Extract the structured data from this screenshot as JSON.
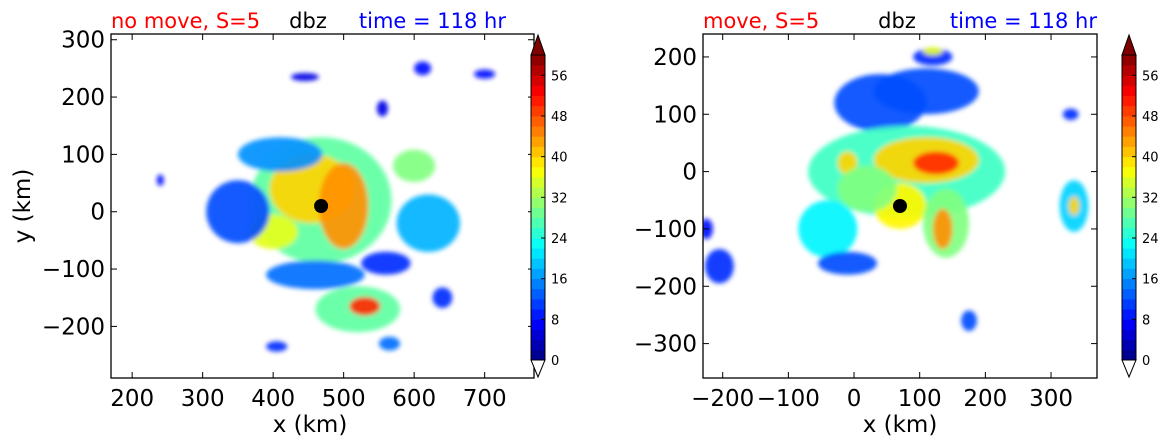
{
  "figure": {
    "panels": [
      {
        "title_left": "no move, S=5",
        "title_center": "dbz",
        "title_right": "time = 118 hr",
        "xlabel": "x (km)",
        "ylabel": "y (km)",
        "xticks": [
          "200",
          "300",
          "400",
          "500",
          "600",
          "700"
        ],
        "yticks": [
          "300",
          "200",
          "100",
          "0",
          "−100",
          "−200"
        ]
      },
      {
        "title_left": "move, S=5",
        "title_center": "dbz",
        "title_right": "time = 118 hr",
        "xlabel": "x (km)",
        "ylabel": "",
        "xticks": [
          "−200",
          "−100",
          "0",
          "100",
          "200",
          "300"
        ],
        "yticks": [
          "200",
          "100",
          "0",
          "−100",
          "−200",
          "−300"
        ]
      }
    ],
    "colorbar_ticks": [
      "0",
      "8",
      "16",
      "24",
      "32",
      "40",
      "48",
      "56"
    ],
    "title_colors": {
      "left": "#ff0000",
      "center": "#000000",
      "right": "#0000ff"
    }
  },
  "chart_data": [
    {
      "type": "heatmap",
      "title": "no move, S=5   dbz   time = 118 hr",
      "xlabel": "x (km)",
      "ylabel": "y (km)",
      "xlim": [
        170,
        770
      ],
      "ylim": [
        -290,
        310
      ],
      "color_range": [
        0,
        60
      ],
      "colormap": "jet",
      "center_marker": {
        "x": 468,
        "y": 10
      },
      "features": [
        {
          "x": 468,
          "y": 20,
          "rx": 100,
          "ry": 110,
          "dbz": 28
        },
        {
          "x": 455,
          "y": 40,
          "rx": 60,
          "ry": 60,
          "dbz": 40
        },
        {
          "x": 500,
          "y": 10,
          "rx": 35,
          "ry": 75,
          "dbz": 44
        },
        {
          "x": 600,
          "y": 80,
          "rx": 30,
          "ry": 28,
          "dbz": 30
        },
        {
          "x": 400,
          "y": -35,
          "rx": 35,
          "ry": 30,
          "dbz": 36
        },
        {
          "x": 350,
          "y": 0,
          "rx": 45,
          "ry": 55,
          "dbz": 12
        },
        {
          "x": 410,
          "y": 100,
          "rx": 60,
          "ry": 30,
          "dbz": 16
        },
        {
          "x": 620,
          "y": -20,
          "rx": 45,
          "ry": 50,
          "dbz": 18
        },
        {
          "x": 520,
          "y": -170,
          "rx": 60,
          "ry": 40,
          "dbz": 28
        },
        {
          "x": 530,
          "y": -165,
          "rx": 22,
          "ry": 16,
          "dbz": 50
        },
        {
          "x": 560,
          "y": -90,
          "rx": 35,
          "ry": 20,
          "dbz": 10
        },
        {
          "x": 565,
          "y": -230,
          "rx": 15,
          "ry": 12,
          "dbz": 14
        },
        {
          "x": 405,
          "y": -235,
          "rx": 15,
          "ry": 9,
          "dbz": 10
        },
        {
          "x": 460,
          "y": -110,
          "rx": 70,
          "ry": 25,
          "dbz": 14
        },
        {
          "x": 612,
          "y": 250,
          "rx": 12,
          "ry": 12,
          "dbz": 8
        },
        {
          "x": 700,
          "y": 240,
          "rx": 15,
          "ry": 8,
          "dbz": 8
        },
        {
          "x": 445,
          "y": 235,
          "rx": 20,
          "ry": 7,
          "dbz": 6
        },
        {
          "x": 240,
          "y": 55,
          "rx": 5,
          "ry": 10,
          "dbz": 8
        },
        {
          "x": 555,
          "y": 180,
          "rx": 8,
          "ry": 14,
          "dbz": 6
        },
        {
          "x": 640,
          "y": -150,
          "rx": 14,
          "ry": 18,
          "dbz": 10
        }
      ]
    },
    {
      "type": "heatmap",
      "title": "move, S=5   dbz   time = 118 hr",
      "xlabel": "x (km)",
      "ylabel": "",
      "xlim": [
        -230,
        370
      ],
      "ylim": [
        -360,
        240
      ],
      "color_range": [
        0,
        60
      ],
      "colormap": "jet",
      "center_marker": {
        "x": 70,
        "y": -60
      },
      "features": [
        {
          "x": 40,
          "y": 120,
          "rx": 70,
          "ry": 50,
          "dbz": 12
        },
        {
          "x": 110,
          "y": 140,
          "rx": 80,
          "ry": 40,
          "dbz": 12
        },
        {
          "x": 120,
          "y": 200,
          "rx": 30,
          "ry": 15,
          "dbz": 10
        },
        {
          "x": 120,
          "y": 210,
          "rx": 15,
          "ry": 7,
          "dbz": 36
        },
        {
          "x": 80,
          "y": 0,
          "rx": 150,
          "ry": 80,
          "dbz": 26
        },
        {
          "x": 110,
          "y": 20,
          "rx": 80,
          "ry": 40,
          "dbz": 40
        },
        {
          "x": 125,
          "y": 15,
          "rx": 35,
          "ry": 20,
          "dbz": 50
        },
        {
          "x": 70,
          "y": -60,
          "rx": 40,
          "ry": 40,
          "dbz": 38
        },
        {
          "x": -10,
          "y": 15,
          "rx": 15,
          "ry": 20,
          "dbz": 40
        },
        {
          "x": 20,
          "y": -30,
          "rx": 45,
          "ry": 40,
          "dbz": 30
        },
        {
          "x": 140,
          "y": -90,
          "rx": 35,
          "ry": 60,
          "dbz": 30
        },
        {
          "x": 135,
          "y": -100,
          "rx": 15,
          "ry": 35,
          "dbz": 44
        },
        {
          "x": -40,
          "y": -100,
          "rx": 45,
          "ry": 50,
          "dbz": 22
        },
        {
          "x": -10,
          "y": -160,
          "rx": 45,
          "ry": 20,
          "dbz": 12
        },
        {
          "x": 335,
          "y": -60,
          "rx": 22,
          "ry": 45,
          "dbz": 20
        },
        {
          "x": 335,
          "y": -60,
          "rx": 8,
          "ry": 16,
          "dbz": 40
        },
        {
          "x": 330,
          "y": 100,
          "rx": 12,
          "ry": 10,
          "dbz": 10
        },
        {
          "x": 175,
          "y": -260,
          "rx": 12,
          "ry": 18,
          "dbz": 12
        },
        {
          "x": -205,
          "y": -165,
          "rx": 22,
          "ry": 30,
          "dbz": 10
        },
        {
          "x": -225,
          "y": -100,
          "rx": 10,
          "ry": 18,
          "dbz": 8
        }
      ]
    }
  ]
}
